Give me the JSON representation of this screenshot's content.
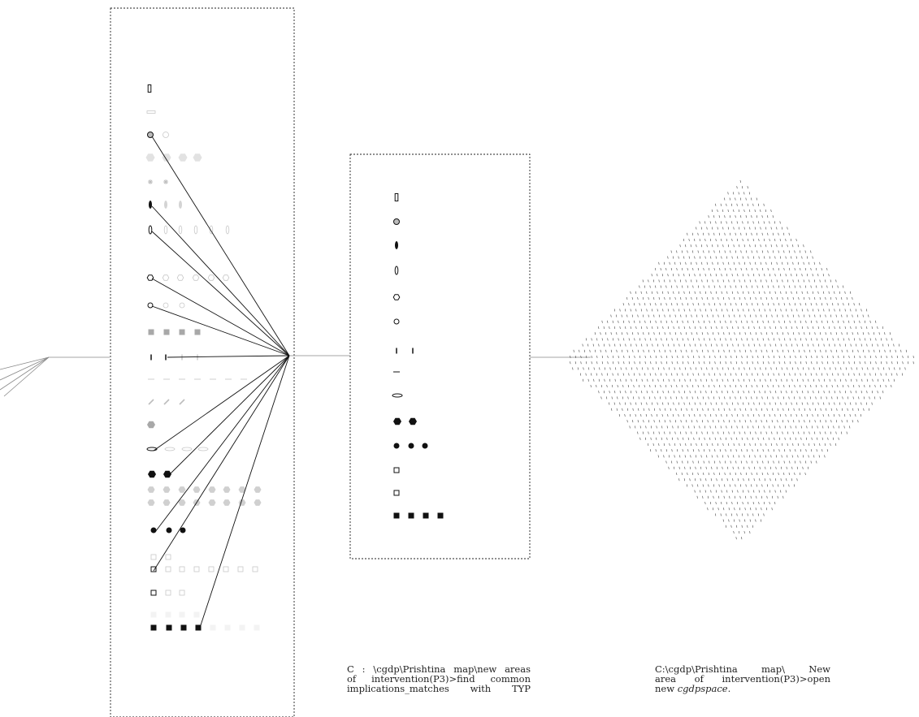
{
  "captions": {
    "match_path": {
      "line1": "C : \\cgdp\\Prishtina map\\new areas",
      "line2": "of intervention(P3)>find common",
      "line3": "implications_matches with TYP"
    },
    "space_path": {
      "line1": "C:\\cgdp\\Prishtina map\\ New",
      "line2": "area of intervention(P3)>open",
      "line3_plain": "new ",
      "line3_italic": "cgdpspace",
      "line3_end": "."
    }
  },
  "colors": {
    "line": "#111111",
    "connector": "#888888",
    "frame": "#222222",
    "faded_symbol": "#c8c8c8",
    "light_fill": "#d0d0d0",
    "mid_fill": "#a8a8a8",
    "dark_fill": "#111111"
  },
  "symbol_names": [
    "tall-rect-icon",
    "flat-rect-icon",
    "circle-icon",
    "hexagon-icon",
    "star-icon",
    "filled-ellipse-icon",
    "outline-ellipse-icon",
    "open-hexagon-icon",
    "open-circle-icon",
    "grey-square-icon",
    "vertical-tick-icon",
    "dash-icon",
    "slash-icon",
    "grey-hexagon-icon",
    "flat-ellipse-icon",
    "filled-hexagon-icon",
    "grey-dot-icon",
    "filled-dot-icon",
    "open-square-icon",
    "filled-square-icon"
  ]
}
